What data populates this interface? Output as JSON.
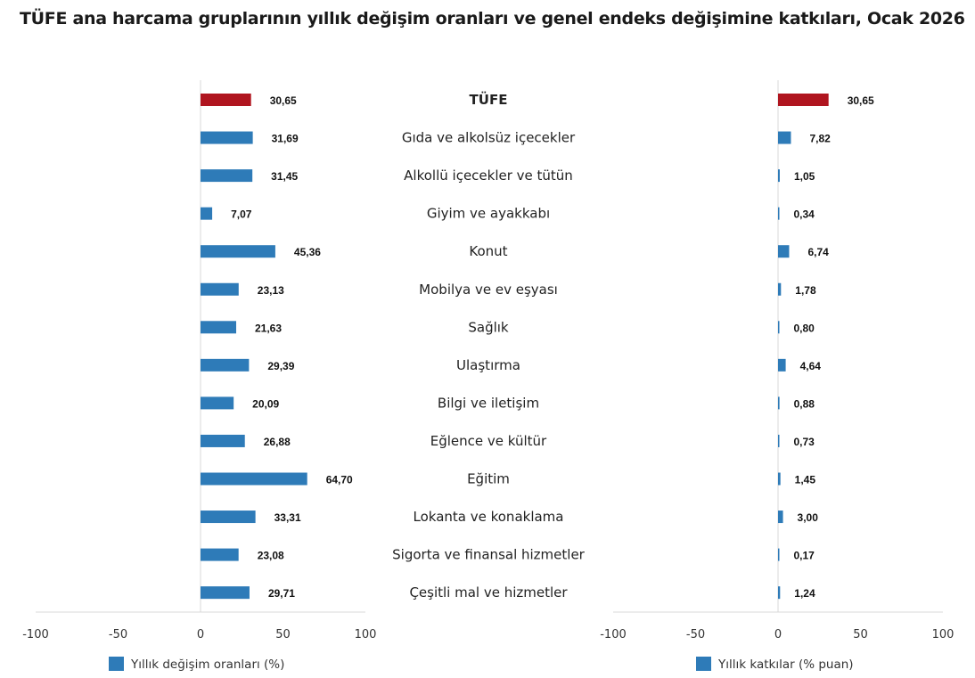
{
  "title": "TÜFE ana harcama gruplarının yıllık değişim oranları ve genel endeks değişimine katkıları, Ocak 2026",
  "chart_data": [
    {
      "type": "bar",
      "orientation": "horizontal",
      "categories": [
        "TÜFE",
        "Gıda ve alkolsüz içecekler",
        "Alkollü içecekler ve tütün",
        "Giyim ve ayakkabı",
        "Konut",
        "Mobilya ve ev eşyası",
        "Sağlık",
        "Ulaştırma",
        "Bilgi ve iletişim",
        "Eğlence ve kültür",
        "Eğitim",
        "Lokanta ve konaklama",
        "Sigorta ve finansal hizmetler",
        "Çeşitli mal ve hizmetler"
      ],
      "series": [
        {
          "name": "Yıllık değişim oranları (%)",
          "values": [
            30.65,
            31.69,
            31.45,
            7.07,
            45.36,
            23.13,
            21.63,
            29.39,
            20.09,
            26.88,
            64.7,
            33.31,
            23.08,
            29.71
          ],
          "labels": [
            "30,65",
            "31,69",
            "31,45",
            "7,07",
            "45,36",
            "23,13",
            "21,63",
            "29,39",
            "20,09",
            "26,88",
            "64,70",
            "33,31",
            "23,08",
            "29,71"
          ]
        }
      ],
      "xlim": [
        -100,
        100
      ],
      "ticks": [
        "-100",
        "-50",
        "0",
        "50",
        "100"
      ],
      "legend": "bottom",
      "grid": false
    },
    {
      "type": "bar",
      "orientation": "horizontal",
      "series": [
        {
          "name": "Yıllık katkılar (% puan)",
          "values": [
            30.65,
            7.82,
            1.05,
            0.34,
            6.74,
            1.78,
            0.8,
            4.64,
            0.88,
            0.73,
            1.45,
            3.0,
            0.17,
            1.24
          ],
          "labels": [
            "30,65",
            "7,82",
            "1,05",
            "0,34",
            "6,74",
            "1,78",
            "0,80",
            "4,64",
            "0,88",
            "0,73",
            "1,45",
            "3,00",
            "0,17",
            "1,24"
          ]
        }
      ],
      "xlim": [
        -100,
        100
      ],
      "ticks": [
        "-100",
        "-50",
        "0",
        "50",
        "100"
      ],
      "legend": "bottom",
      "grid": false
    }
  ],
  "colors": {
    "total": "#b0151f",
    "group": "#2e7bb8",
    "axis": "#d9d9d9"
  }
}
